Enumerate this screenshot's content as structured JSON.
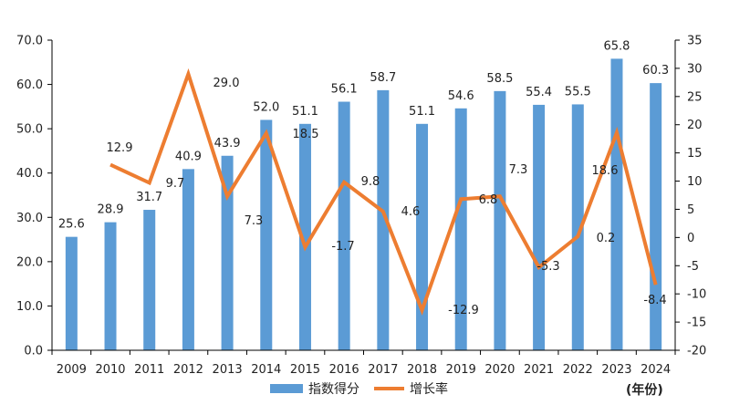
{
  "chart_data": {
    "type": "bar",
    "categories": [
      "2009",
      "2010",
      "2011",
      "2012",
      "2013",
      "2014",
      "2015",
      "2016",
      "2017",
      "2018",
      "2019",
      "2020",
      "2021",
      "2022",
      "2023",
      "2024"
    ],
    "series": [
      {
        "name": "指数得分",
        "type": "bar",
        "axis": "left",
        "color": "#5B9BD5",
        "values": [
          25.6,
          28.9,
          31.7,
          40.9,
          43.9,
          52.0,
          51.1,
          56.1,
          58.7,
          51.1,
          54.6,
          58.5,
          55.4,
          55.5,
          65.8,
          60.3
        ],
        "labels": [
          "25.6",
          "28.9",
          "31.7",
          "40.9",
          "43.9",
          "52.0",
          "51.1",
          "56.1",
          "58.7",
          "51.1",
          "54.6",
          "58.5",
          "55.4",
          "55.5",
          "65.8",
          "60.3"
        ]
      },
      {
        "name": "增长率",
        "type": "line",
        "axis": "right",
        "color": "#ED7D31",
        "values": [
          null,
          12.9,
          9.7,
          29.0,
          7.3,
          18.5,
          -1.7,
          9.8,
          4.6,
          -12.9,
          6.8,
          7.3,
          -5.3,
          0.2,
          18.6,
          -8.4
        ],
        "labels": [
          "",
          "12.9",
          "9.7",
          "29.0",
          "7.3",
          "18.5",
          "-1.7",
          "9.8",
          "4.6",
          "-12.9",
          "6.8",
          "7.3",
          "-5.3",
          "0.2",
          "18.6",
          "-8.4"
        ]
      }
    ],
    "y_left": {
      "min": 0,
      "max": 70,
      "step": 10,
      "tick_labels": [
        "0.0",
        "10.0",
        "20.0",
        "30.0",
        "40.0",
        "50.0",
        "60.0",
        "70.0"
      ]
    },
    "y_right": {
      "min": -20,
      "max": 35,
      "step": 5,
      "tick_labels": [
        "-20",
        "-15",
        "-10",
        "-5",
        "0",
        "5",
        "10",
        "15",
        "20",
        "25",
        "30",
        "35"
      ]
    },
    "x_unit_label": "(年份)",
    "legend": {
      "position": "bottom",
      "items": [
        "指数得分",
        "增长率"
      ]
    },
    "grid": false
  }
}
